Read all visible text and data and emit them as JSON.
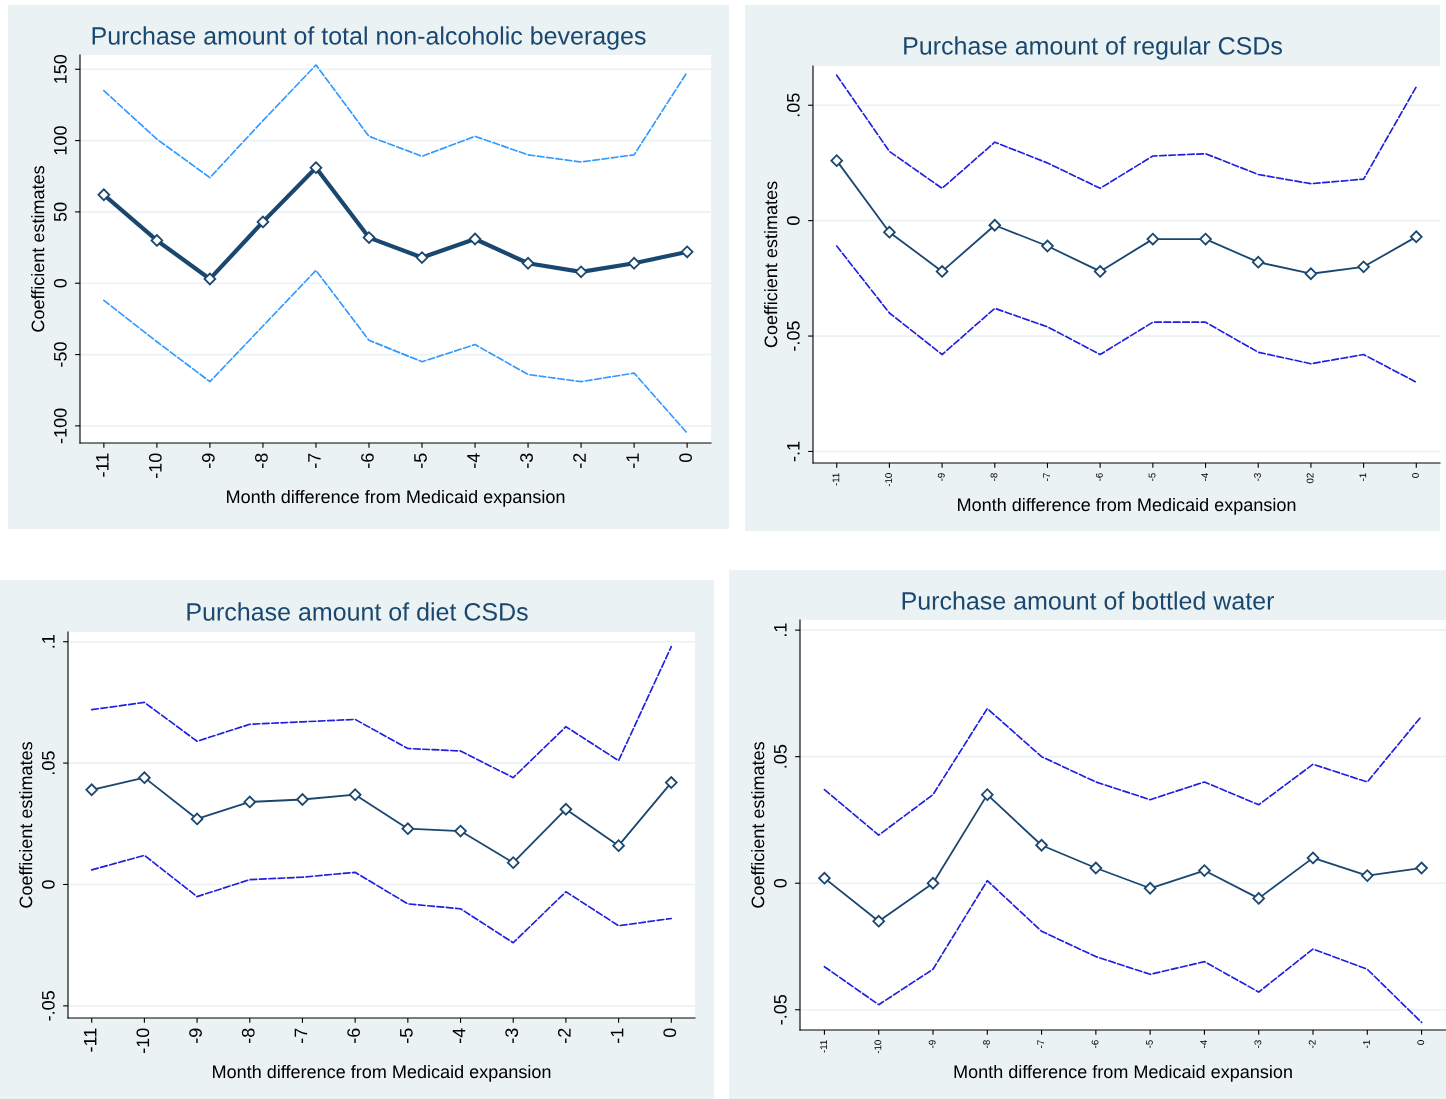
{
  "chart_data": [
    {
      "type": "line",
      "title": "Purchase amount of total non-alcoholic beverages",
      "xlabel": "Month difference from Medicaid expansion",
      "ylabel": "Coefficient estimates",
      "categories": [
        "-11",
        "-10",
        "-9",
        "-8",
        "-7",
        "-6",
        "-5",
        "-4",
        "-3",
        "-2",
        "-1",
        "0"
      ],
      "ylim": [
        -112,
        160
      ],
      "yticks": [
        -100,
        -50,
        0,
        50,
        100,
        150
      ],
      "grid": "y",
      "series": [
        {
          "color": "#3399ff",
          "line_style": "dashed",
          "marker": "none",
          "values": [
            135,
            101,
            74,
            114,
            153,
            103,
            89,
            103,
            90,
            85,
            90,
            148
          ]
        },
        {
          "color": "#3399ff",
          "line_style": "dashed",
          "marker": "none",
          "values": [
            -12,
            -41,
            -69,
            -30,
            9,
            -40,
            -55,
            -43,
            -64,
            -69,
            -63,
            -105
          ]
        },
        {
          "color": "#1a476f",
          "line_style": "solid",
          "marker": "diamond",
          "values": [
            62,
            30,
            3,
            43,
            81,
            32,
            18,
            31,
            14,
            8,
            14,
            22
          ]
        }
      ]
    },
    {
      "type": "line",
      "title": "Purchase amount of regular CSDs",
      "xlabel": "Month difference from Medicaid expansion",
      "ylabel": "Coefficient estimates",
      "categories": [
        "-11",
        "-10",
        "-9",
        "-8",
        "-7",
        "-6",
        "-5",
        "-4",
        "-3",
        "02",
        "-1",
        "0"
      ],
      "ylim": [
        -0.105,
        0.067
      ],
      "yticks": [
        {
          "value": -0.1,
          "label": "-.1"
        },
        {
          "value": -0.05,
          "label": "-.05"
        },
        0,
        {
          "value": 0.05,
          "label": ".05"
        }
      ],
      "grid": "y",
      "series": [
        {
          "color": "#1f1fe0",
          "line_style": "dashed",
          "marker": "none",
          "values": [
            0.063,
            0.03,
            0.014,
            0.034,
            0.025,
            0.014,
            0.028,
            0.029,
            0.02,
            0.016,
            0.018,
            0.058
          ]
        },
        {
          "color": "#1f1fe0",
          "line_style": "dashed",
          "marker": "none",
          "values": [
            -0.011,
            -0.04,
            -0.058,
            -0.038,
            -0.046,
            -0.058,
            -0.044,
            -0.044,
            -0.057,
            -0.062,
            -0.058,
            -0.07
          ]
        },
        {
          "color": "#1a476f",
          "line_style": "solid",
          "marker": "diamond",
          "values": [
            0.026,
            -0.005,
            -0.022,
            -0.002,
            -0.011,
            -0.022,
            -0.008,
            -0.008,
            -0.018,
            -0.023,
            -0.02,
            -0.007
          ]
        }
      ]
    },
    {
      "type": "line",
      "title": "Purchase amount of diet CSDs",
      "xlabel": "Month difference from Medicaid expansion",
      "ylabel": "Coefficient estimates",
      "categories": [
        "-11",
        "-10",
        "-9",
        "-8",
        "-7",
        "-6",
        "-5",
        "-4",
        "-3",
        "-2",
        "-1",
        "0"
      ],
      "ylim": [
        -0.055,
        0.104
      ],
      "yticks": [
        {
          "value": -0.05,
          "label": "-.05"
        },
        0,
        {
          "value": 0.05,
          "label": ".05"
        },
        {
          "value": 0.1,
          "label": ".1"
        }
      ],
      "grid": "y",
      "series": [
        {
          "color": "#1f1fe0",
          "line_style": "dashed",
          "marker": "none",
          "values": [
            0.072,
            0.075,
            0.059,
            0.066,
            0.067,
            0.068,
            0.056,
            0.055,
            0.044,
            0.065,
            0.051,
            0.098
          ]
        },
        {
          "color": "#1f1fe0",
          "line_style": "dashed",
          "marker": "none",
          "values": [
            0.006,
            0.012,
            -0.005,
            0.002,
            0.003,
            0.005,
            -0.008,
            -0.01,
            -0.024,
            -0.003,
            -0.017,
            -0.014
          ]
        },
        {
          "color": "#1a476f",
          "line_style": "solid",
          "marker": "diamond",
          "values": [
            0.039,
            0.044,
            0.027,
            0.034,
            0.035,
            0.037,
            0.023,
            0.022,
            0.009,
            0.031,
            0.016,
            0.042
          ]
        }
      ]
    },
    {
      "type": "line",
      "title": "Purchase amount of bottled water",
      "xlabel": "Month difference from Medicaid expansion",
      "ylabel": "Coefficient estimates",
      "categories": [
        "-11",
        "-10",
        "-9",
        "-8",
        "-7",
        "-6",
        "-5",
        "-4",
        "-3",
        "-2",
        "-1",
        "0"
      ],
      "ylim": [
        -0.058,
        0.104
      ],
      "yticks": [
        {
          "value": -0.05,
          "label": "-.05"
        },
        0,
        {
          "value": 0.05,
          "label": ".05"
        },
        {
          "value": 0.1,
          "label": ".1"
        }
      ],
      "grid": "y",
      "series": [
        {
          "color": "#1f1fe0",
          "line_style": "dashed",
          "marker": "none",
          "values": [
            0.037,
            0.019,
            0.035,
            0.069,
            0.05,
            0.04,
            0.033,
            0.04,
            0.031,
            0.047,
            0.04,
            0.066
          ]
        },
        {
          "color": "#1f1fe0",
          "line_style": "dashed",
          "marker": "none",
          "values": [
            -0.033,
            -0.048,
            -0.034,
            0.001,
            -0.019,
            -0.029,
            -0.036,
            -0.031,
            -0.043,
            -0.026,
            -0.034,
            -0.055
          ]
        },
        {
          "color": "#1a476f",
          "line_style": "solid",
          "marker": "diamond",
          "values": [
            0.002,
            -0.015,
            0.0,
            0.035,
            0.015,
            0.006,
            -0.002,
            0.005,
            -0.006,
            0.01,
            0.003,
            0.006
          ]
        }
      ]
    }
  ]
}
